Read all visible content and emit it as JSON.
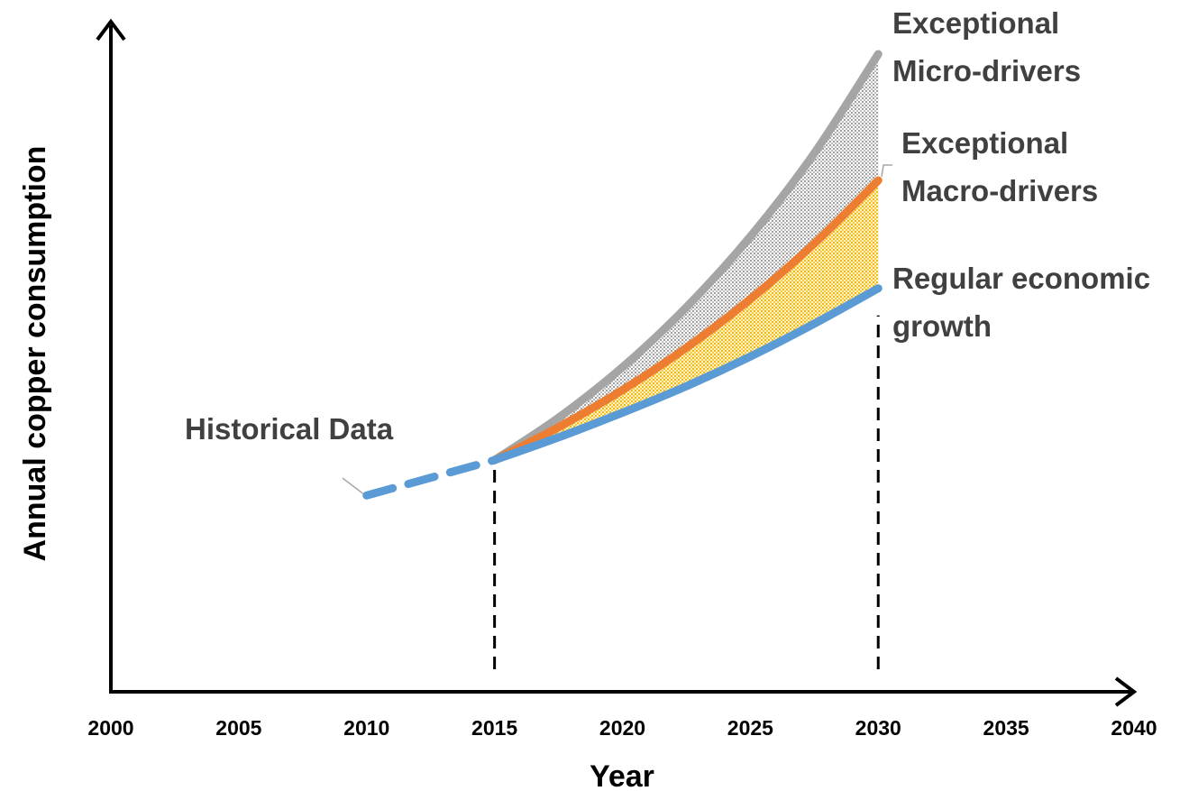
{
  "chart_data": {
    "type": "line",
    "xlabel": "Year",
    "ylabel": "Annual copper consumption",
    "xlim": [
      2000,
      2040
    ],
    "xticks": [
      2000,
      2005,
      2010,
      2015,
      2020,
      2025,
      2030,
      2035,
      2040
    ],
    "ylim": [
      0,
      105
    ],
    "series": [
      {
        "name": "Historical Data",
        "color": "#5b9bd5",
        "dashed": true,
        "x": [
          2010,
          2015
        ],
        "values": [
          31.1,
          36.7
        ]
      },
      {
        "name": "Regular economic\ngrowth",
        "color": "#5b9bd5",
        "x": [
          2015,
          2017.5,
          2020,
          2022.5,
          2025,
          2027.5,
          2030
        ],
        "values": [
          36.7,
          40.3,
          44.2,
          48.4,
          53.1,
          58.3,
          63.9
        ]
      },
      {
        "name": "Exceptional\nMacro-drivers",
        "color": "#ed7d31",
        "x": [
          2015,
          2017.5,
          2020,
          2022.5,
          2025,
          2027.5,
          2030
        ],
        "values": [
          36.7,
          41.9,
          47.8,
          54.5,
          62.2,
          71.0,
          81.0
        ]
      },
      {
        "name": "Exceptional\nMicro-drivers",
        "color": "#a5a5a5",
        "x": [
          2015,
          2017.5,
          2020,
          2022.5,
          2025,
          2027.5,
          2030
        ],
        "values": [
          36.7,
          43.4,
          51.4,
          60.9,
          72.1,
          85.3,
          101.0
        ]
      }
    ]
  }
}
